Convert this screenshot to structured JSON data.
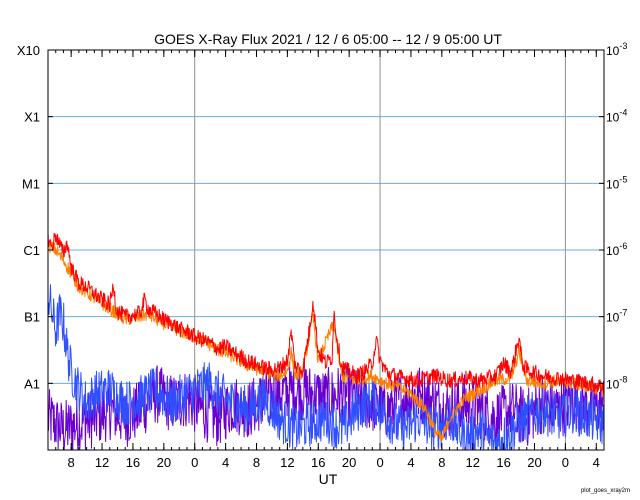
{
  "chart_data": {
    "type": "line",
    "title": "GOES X-Ray Flux   2021 / 12 /  6   05:00 -- 12 /  9   05:00   UT",
    "xlabel": "UT",
    "footer": "plot_goes_xray2m",
    "x_range_hours": [
      0,
      72
    ],
    "y_scale": "log",
    "ylim": [
      1e-09,
      0.001
    ],
    "left_ticks": [
      {
        "label": "X10",
        "value": 0.001
      },
      {
        "label": "X1",
        "value": 0.0001
      },
      {
        "label": "M1",
        "value": 1e-05
      },
      {
        "label": "C1",
        "value": 1e-06
      },
      {
        "label": "B1",
        "value": 1e-07
      },
      {
        "label": "A1",
        "value": 1e-08
      }
    ],
    "right_ticks": [
      {
        "base": "10",
        "exp": "-3",
        "value": 0.001
      },
      {
        "base": "10",
        "exp": "-4",
        "value": 0.0001
      },
      {
        "base": "10",
        "exp": "-5",
        "value": 1e-05
      },
      {
        "base": "10",
        "exp": "-6",
        "value": 1e-06
      },
      {
        "base": "10",
        "exp": "-7",
        "value": 1e-07
      },
      {
        "base": "10",
        "exp": "-8",
        "value": 1e-08
      }
    ],
    "x_ticks": [
      {
        "label": "8",
        "hour": 3
      },
      {
        "label": "12",
        "hour": 7
      },
      {
        "label": "16",
        "hour": 11
      },
      {
        "label": "20",
        "hour": 15
      },
      {
        "label": "0",
        "hour": 19
      },
      {
        "label": "4",
        "hour": 23
      },
      {
        "label": "8",
        "hour": 27
      },
      {
        "label": "12",
        "hour": 31
      },
      {
        "label": "16",
        "hour": 35
      },
      {
        "label": "20",
        "hour": 39
      },
      {
        "label": "0",
        "hour": 43
      },
      {
        "label": "4",
        "hour": 47
      },
      {
        "label": "8",
        "hour": 51
      },
      {
        "label": "12",
        "hour": 55
      },
      {
        "label": "16",
        "hour": 59
      },
      {
        "label": "20",
        "hour": 63
      },
      {
        "label": "0",
        "hour": 67
      },
      {
        "label": "4",
        "hour": 71
      }
    ],
    "day_boundaries_hours": [
      19,
      43,
      67
    ],
    "colors": {
      "long_a": "#ff0000",
      "long_b": "#ff8000",
      "short_a": "#3050ff",
      "short_b": "#6a00d0",
      "grid": "#6aaee0",
      "day_line": "#909090"
    },
    "series": [
      {
        "color_key": "long_a",
        "points": [
          [
            0,
            1.5e-06
          ],
          [
            0.5,
            1.1e-06
          ],
          [
            1,
            1.7e-06
          ],
          [
            1.5,
            1.2e-06
          ],
          [
            2,
            9e-07
          ],
          [
            2.5,
            1.3e-06
          ],
          [
            3,
            5.5e-07
          ],
          [
            4,
            3.2e-07
          ],
          [
            5,
            2.8e-07
          ],
          [
            6,
            2.2e-07
          ],
          [
            7,
            1.8e-07
          ],
          [
            8,
            1.5e-07
          ],
          [
            8.5,
            3e-07
          ],
          [
            8.8,
            1.4e-07
          ],
          [
            9,
            1.2e-07
          ],
          [
            10,
            1e-07
          ],
          [
            11,
            1.05e-07
          ],
          [
            12,
            1.15e-07
          ],
          [
            12.5,
            1.8e-07
          ],
          [
            13,
            1.3e-07
          ],
          [
            14,
            1.1e-07
          ],
          [
            15,
            9e-08
          ],
          [
            16,
            8e-08
          ],
          [
            17,
            6.5e-08
          ],
          [
            18,
            6e-08
          ],
          [
            19,
            5e-08
          ],
          [
            20,
            4.5e-08
          ],
          [
            21,
            4e-08
          ],
          [
            22,
            3.3e-08
          ],
          [
            23,
            3.6e-08
          ],
          [
            24,
            2.9e-08
          ],
          [
            25,
            2.5e-08
          ],
          [
            26,
            2.1e-08
          ],
          [
            27,
            1.9e-08
          ],
          [
            28,
            1.7e-08
          ],
          [
            29,
            1.6e-08
          ],
          [
            30,
            1.7e-08
          ],
          [
            31,
            2.2e-08
          ],
          [
            31.5,
            6e-08
          ],
          [
            32,
            1.8e-08
          ],
          [
            33,
            1.6e-08
          ],
          [
            34,
            8e-08
          ],
          [
            34.3,
            1.8e-07
          ],
          [
            35,
            3e-08
          ],
          [
            36,
            2e-08
          ],
          [
            36.8,
            2.5e-08
          ],
          [
            37,
            1.2e-07
          ],
          [
            37.3,
            6e-08
          ],
          [
            38,
            1.8e-08
          ],
          [
            39,
            1.5e-08
          ],
          [
            40,
            1.3e-08
          ],
          [
            41,
            1.5e-08
          ],
          [
            42,
            2e-08
          ],
          [
            42.5,
            4.5e-08
          ],
          [
            43,
            2.2e-08
          ],
          [
            44,
            1.4e-08
          ],
          [
            46,
            1.2e-08
          ],
          [
            48,
            1.1e-08
          ],
          [
            50,
            1.3e-08
          ],
          [
            52,
            1.1e-08
          ],
          [
            54,
            1.2e-08
          ],
          [
            56,
            1.1e-08
          ],
          [
            58,
            1.3e-08
          ],
          [
            59,
            2e-08
          ],
          [
            60,
            1.5e-08
          ],
          [
            61,
            5e-08
          ],
          [
            61.4,
            2e-08
          ],
          [
            62,
            1.6e-08
          ],
          [
            64,
            1.3e-08
          ],
          [
            66,
            1.2e-08
          ],
          [
            68,
            1.1e-08
          ],
          [
            70,
            1e-08
          ],
          [
            72,
            9e-09
          ]
        ]
      },
      {
        "color_key": "long_b",
        "points": [
          [
            0,
            1.2e-06
          ],
          [
            1,
            1e-06
          ],
          [
            2,
            7e-07
          ],
          [
            3,
            4.5e-07
          ],
          [
            4,
            2.8e-07
          ],
          [
            6,
            1.9e-07
          ],
          [
            8,
            1.3e-07
          ],
          [
            9,
            1.1e-07
          ],
          [
            10,
            9e-08
          ],
          [
            12,
            1e-07
          ],
          [
            13,
            1.1e-07
          ],
          [
            14,
            9e-08
          ],
          [
            16,
            7e-08
          ],
          [
            18,
            5.5e-08
          ],
          [
            20,
            4.5e-08
          ],
          [
            22,
            3.2e-08
          ],
          [
            24,
            2.5e-08
          ],
          [
            26,
            1.8e-08
          ],
          [
            28,
            1.5e-08
          ],
          [
            30,
            1.3e-08
          ],
          [
            31,
            1.5e-08
          ],
          [
            31.5,
            3e-08
          ],
          [
            32,
            1.3e-08
          ],
          [
            33,
            1.5e-08
          ],
          [
            34.3,
            1e-07
          ],
          [
            35,
            2.2e-08
          ],
          [
            37,
            8e-08
          ],
          [
            38,
            1.3e-08
          ],
          [
            40,
            1.1e-08
          ],
          [
            42,
            1.3e-08
          ],
          [
            43,
            1.1e-08
          ],
          [
            45,
            9e-09
          ],
          [
            47,
            7e-09
          ],
          [
            49,
            4e-09
          ],
          [
            50,
            2e-09
          ],
          [
            51,
            1.4e-09
          ],
          [
            52,
            3e-09
          ],
          [
            54,
            6e-09
          ],
          [
            56,
            8e-09
          ],
          [
            58,
            1.1e-08
          ],
          [
            60,
            1.2e-08
          ],
          [
            61,
            3e-08
          ],
          [
            62,
            1.1e-08
          ],
          [
            64,
            1e-08
          ],
          [
            66,
            1.1e-08
          ],
          [
            68,
            1e-08
          ],
          [
            70,
            9e-09
          ],
          [
            72,
            8e-09
          ]
        ]
      },
      {
        "color_key": "short_a",
        "points": [
          [
            0,
            2e-07
          ],
          [
            0.5,
            1.2e-07
          ],
          [
            1,
            6e-08
          ],
          [
            1.5,
            1.1e-07
          ],
          [
            2,
            8e-08
          ],
          [
            2.5,
            3e-08
          ],
          [
            3,
            1.5e-08
          ],
          [
            4,
            8e-09
          ],
          [
            5,
            5e-09
          ],
          [
            6,
            7e-09
          ],
          [
            8,
            8e-09
          ],
          [
            10,
            5e-09
          ],
          [
            12,
            6e-09
          ],
          [
            14,
            8e-09
          ],
          [
            16,
            5e-09
          ],
          [
            18,
            7e-09
          ],
          [
            20,
            9e-09
          ],
          [
            21,
            1e-08
          ],
          [
            22,
            7e-09
          ],
          [
            24,
            5e-09
          ],
          [
            26,
            4e-09
          ],
          [
            28,
            6e-09
          ],
          [
            30,
            3e-09
          ],
          [
            32,
            2e-09
          ],
          [
            34,
            2.5e-09
          ],
          [
            36,
            3e-09
          ],
          [
            38,
            2e-09
          ],
          [
            40,
            4e-09
          ],
          [
            42,
            6e-09
          ],
          [
            44,
            3e-09
          ],
          [
            46,
            2e-09
          ],
          [
            48,
            3e-09
          ],
          [
            50,
            2e-09
          ],
          [
            52,
            3e-09
          ],
          [
            54,
            1.5e-09
          ],
          [
            56,
            2e-09
          ],
          [
            58,
            1.2e-09
          ],
          [
            60,
            2e-09
          ],
          [
            62,
            3e-09
          ],
          [
            64,
            4e-09
          ],
          [
            66,
            3e-09
          ],
          [
            68,
            4e-09
          ],
          [
            70,
            3e-09
          ],
          [
            72,
            2.5e-09
          ]
        ]
      },
      {
        "color_key": "short_b",
        "points": [
          [
            0,
            3e-09
          ],
          [
            2,
            2e-09
          ],
          [
            4,
            2.5e-09
          ],
          [
            6,
            3e-09
          ],
          [
            8,
            4e-09
          ],
          [
            10,
            3e-09
          ],
          [
            12,
            4e-09
          ],
          [
            14,
            7e-09
          ],
          [
            16,
            5e-09
          ],
          [
            18,
            6e-09
          ],
          [
            20,
            4e-09
          ],
          [
            22,
            3e-09
          ],
          [
            24,
            5e-09
          ],
          [
            26,
            4e-09
          ],
          [
            28,
            6e-09
          ],
          [
            30,
            7e-09
          ],
          [
            32,
            8e-09
          ],
          [
            34,
            7e-09
          ],
          [
            36,
            6e-09
          ],
          [
            38,
            7e-09
          ],
          [
            40,
            6e-09
          ],
          [
            42,
            5e-09
          ],
          [
            44,
            4e-09
          ],
          [
            46,
            6e-09
          ],
          [
            48,
            7e-09
          ],
          [
            50,
            5e-09
          ],
          [
            52,
            4e-09
          ],
          [
            54,
            5e-09
          ],
          [
            56,
            4e-09
          ],
          [
            58,
            3e-09
          ],
          [
            60,
            4e-09
          ],
          [
            62,
            3e-09
          ],
          [
            64,
            5e-09
          ],
          [
            66,
            4e-09
          ],
          [
            68,
            6e-09
          ],
          [
            70,
            4e-09
          ],
          [
            72,
            5e-09
          ]
        ]
      }
    ]
  }
}
